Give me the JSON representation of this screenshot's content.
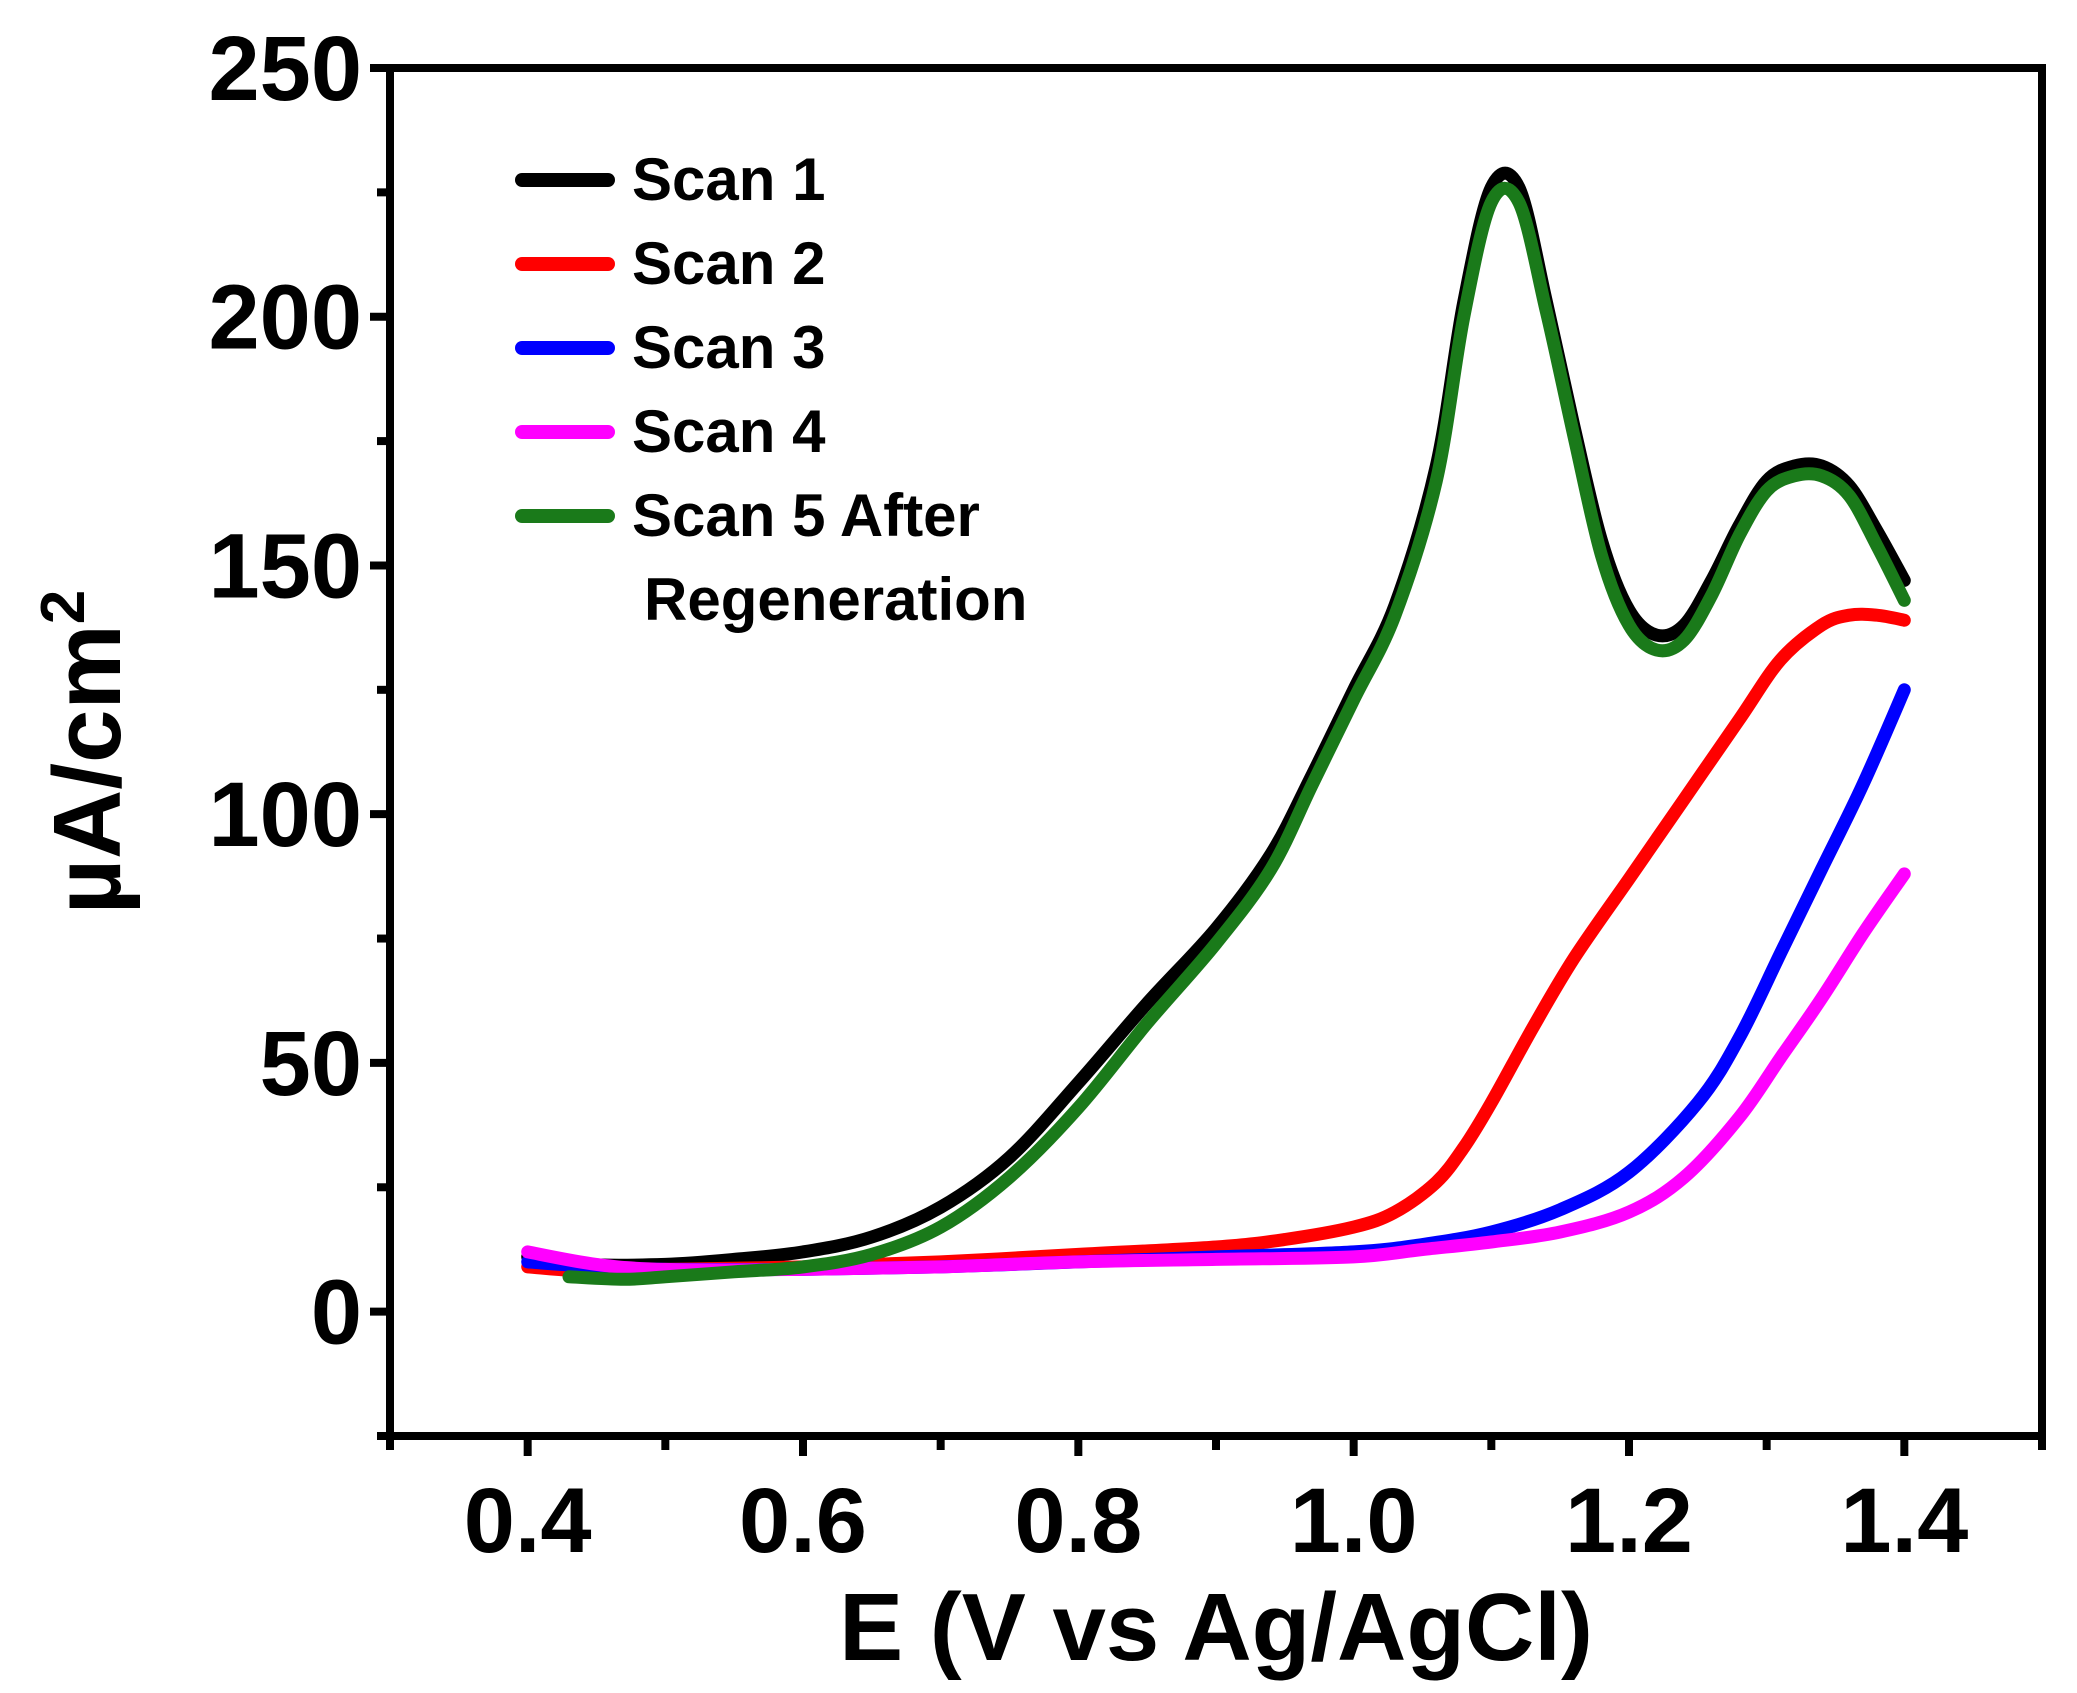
{
  "chart_data": {
    "type": "line",
    "title": "",
    "xlabel": "E (V vs Ag/AgCl)",
    "ylabel": "µA/cm",
    "ylabel_superscript": "2",
    "xlim": [
      0.3,
      1.5
    ],
    "ylim": [
      -25,
      250
    ],
    "x_ticks": [
      0.4,
      0.6,
      0.8,
      1.0,
      1.2,
      1.4
    ],
    "x_tick_labels": [
      "0.4",
      "0.6",
      "0.8",
      "1.0",
      "1.2",
      "1.4"
    ],
    "y_ticks": [
      0,
      50,
      100,
      150,
      200,
      250
    ],
    "y_tick_labels": [
      "0",
      "50",
      "100",
      "150",
      "200",
      "250"
    ],
    "grid": false,
    "legend_position": "top-left",
    "series": [
      {
        "name": "Scan 1",
        "color": "#000000",
        "points": [
          [
            0.4,
            11
          ],
          [
            0.44,
            9.5
          ],
          [
            0.5,
            9.5
          ],
          [
            0.55,
            10.5
          ],
          [
            0.6,
            12
          ],
          [
            0.65,
            15
          ],
          [
            0.7,
            21
          ],
          [
            0.75,
            31
          ],
          [
            0.8,
            46
          ],
          [
            0.85,
            62
          ],
          [
            0.9,
            77
          ],
          [
            0.94,
            92
          ],
          [
            0.97,
            108
          ],
          [
            1.0,
            125
          ],
          [
            1.03,
            142
          ],
          [
            1.06,
            170
          ],
          [
            1.08,
            203
          ],
          [
            1.1,
            226
          ],
          [
            1.12,
            226
          ],
          [
            1.14,
            203
          ],
          [
            1.16,
            178
          ],
          [
            1.18,
            155
          ],
          [
            1.2,
            141
          ],
          [
            1.22,
            136
          ],
          [
            1.24,
            138
          ],
          [
            1.26,
            147
          ],
          [
            1.28,
            158
          ],
          [
            1.3,
            167
          ],
          [
            1.32,
            170
          ],
          [
            1.34,
            170
          ],
          [
            1.36,
            166
          ],
          [
            1.38,
            157
          ],
          [
            1.4,
            147
          ]
        ]
      },
      {
        "name": "Scan 2",
        "color": "#ff0000",
        "points": [
          [
            0.4,
            9
          ],
          [
            0.45,
            8
          ],
          [
            0.5,
            8.5
          ],
          [
            0.6,
            9
          ],
          [
            0.7,
            10
          ],
          [
            0.8,
            11.5
          ],
          [
            0.9,
            13
          ],
          [
            0.95,
            14.5
          ],
          [
            1.0,
            17
          ],
          [
            1.03,
            20
          ],
          [
            1.06,
            26
          ],
          [
            1.08,
            33
          ],
          [
            1.1,
            42
          ],
          [
            1.13,
            57
          ],
          [
            1.16,
            71
          ],
          [
            1.2,
            87
          ],
          [
            1.24,
            103
          ],
          [
            1.28,
            119
          ],
          [
            1.31,
            131
          ],
          [
            1.34,
            138
          ],
          [
            1.36,
            140
          ],
          [
            1.38,
            140
          ],
          [
            1.4,
            139
          ]
        ]
      },
      {
        "name": "Scan 3",
        "color": "#0000ff",
        "points": [
          [
            0.4,
            10
          ],
          [
            0.45,
            9
          ],
          [
            0.5,
            8.5
          ],
          [
            0.6,
            8.5
          ],
          [
            0.7,
            9
          ],
          [
            0.8,
            10
          ],
          [
            0.9,
            11
          ],
          [
            1.0,
            12
          ],
          [
            1.05,
            13.5
          ],
          [
            1.1,
            16
          ],
          [
            1.15,
            20.5
          ],
          [
            1.2,
            28
          ],
          [
            1.25,
            42
          ],
          [
            1.28,
            55
          ],
          [
            1.31,
            72
          ],
          [
            1.34,
            89
          ],
          [
            1.37,
            106
          ],
          [
            1.4,
            125
          ]
        ]
      },
      {
        "name": "Scan 4",
        "color": "#ff00ff",
        "points": [
          [
            0.4,
            12
          ],
          [
            0.45,
            9.5
          ],
          [
            0.5,
            8.5
          ],
          [
            0.6,
            8.5
          ],
          [
            0.7,
            9
          ],
          [
            0.8,
            10
          ],
          [
            0.9,
            10.5
          ],
          [
            1.0,
            11
          ],
          [
            1.05,
            12.5
          ],
          [
            1.1,
            14
          ],
          [
            1.15,
            16
          ],
          [
            1.2,
            20
          ],
          [
            1.24,
            27
          ],
          [
            1.28,
            39
          ],
          [
            1.31,
            51
          ],
          [
            1.34,
            63
          ],
          [
            1.37,
            76
          ],
          [
            1.4,
            88
          ]
        ]
      },
      {
        "name": "Scan 5 After Regeneration",
        "legend_lines": [
          "Scan 5 After",
          "Regeneration"
        ],
        "color": "#1a7a1a",
        "points": [
          [
            0.43,
            7
          ],
          [
            0.47,
            6.5
          ],
          [
            0.5,
            7
          ],
          [
            0.55,
            8
          ],
          [
            0.6,
            9
          ],
          [
            0.65,
            11.5
          ],
          [
            0.7,
            17
          ],
          [
            0.75,
            27
          ],
          [
            0.8,
            41
          ],
          [
            0.85,
            58
          ],
          [
            0.9,
            74
          ],
          [
            0.94,
            89
          ],
          [
            0.97,
            106
          ],
          [
            1.0,
            123
          ],
          [
            1.03,
            140
          ],
          [
            1.06,
            167
          ],
          [
            1.08,
            200
          ],
          [
            1.1,
            223
          ],
          [
            1.12,
            223
          ],
          [
            1.14,
            201
          ],
          [
            1.16,
            176
          ],
          [
            1.18,
            152
          ],
          [
            1.2,
            138
          ],
          [
            1.22,
            133
          ],
          [
            1.24,
            135
          ],
          [
            1.26,
            144
          ],
          [
            1.28,
            156
          ],
          [
            1.3,
            165
          ],
          [
            1.32,
            168
          ],
          [
            1.34,
            168
          ],
          [
            1.36,
            164
          ],
          [
            1.38,
            154
          ],
          [
            1.4,
            143
          ]
        ]
      }
    ]
  }
}
